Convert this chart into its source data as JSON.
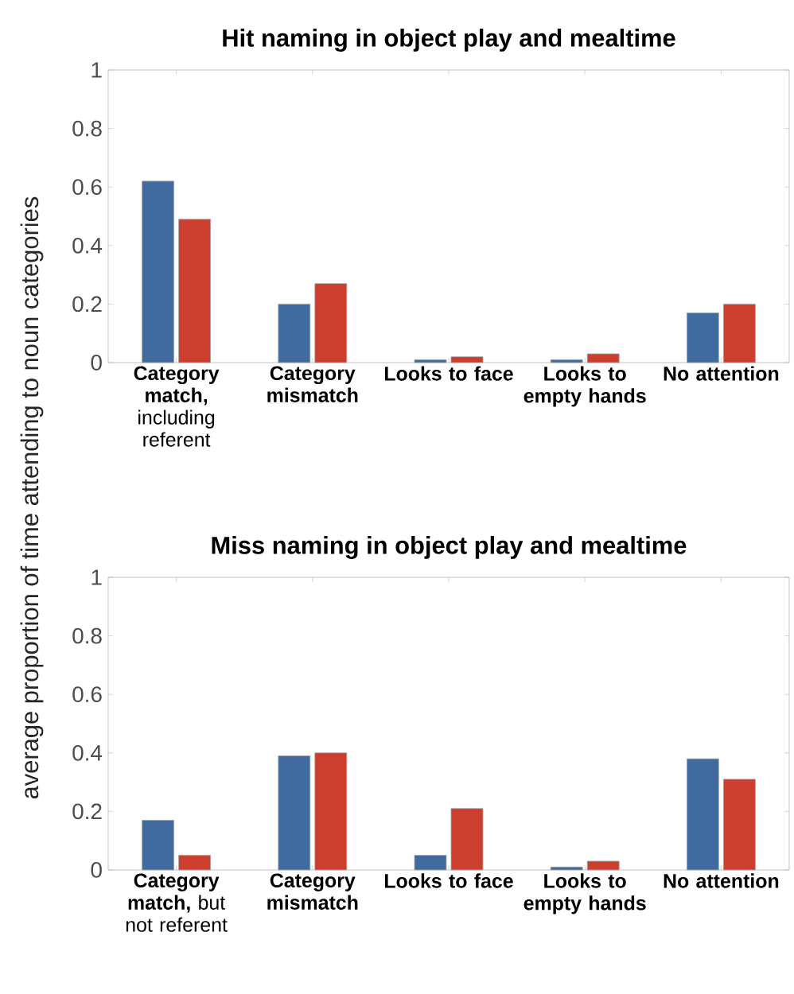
{
  "chart_data": [
    {
      "type": "bar",
      "title": "Hit naming in object play and mealtime",
      "categories": [
        "**Category match,** including referent",
        "Category mismatch",
        "Looks to face",
        "Looks to empty hands",
        "No attention"
      ],
      "series": [
        {
          "color": "#416a9f",
          "values": [
            0.62,
            0.2,
            0.01,
            0.01,
            0.17
          ]
        },
        {
          "color": "#cc3f2f",
          "values": [
            0.49,
            0.27,
            0.02,
            0.03,
            0.2
          ]
        }
      ],
      "ylim": [
        0,
        1
      ],
      "yticks": [
        0,
        0.2,
        0.4,
        0.6,
        0.8,
        1
      ],
      "grid": false,
      "legend": false
    },
    {
      "type": "bar",
      "title": "Miss naming in object play and mealtime",
      "ylabel": "average proportion of time attending to noun categories",
      "categories": [
        "**Category match,** but not referent",
        "Category mismatch",
        "Looks to face",
        "Looks to empty hands",
        "No attention"
      ],
      "series": [
        {
          "color": "#416a9f",
          "values": [
            0.17,
            0.39,
            0.05,
            0.01,
            0.38
          ]
        },
        {
          "color": "#cc3f2f",
          "values": [
            0.05,
            0.4,
            0.21,
            0.03,
            0.31
          ]
        }
      ],
      "ylim": [
        0,
        1
      ],
      "yticks": [
        0,
        0.2,
        0.4,
        0.6,
        0.8,
        1
      ],
      "grid": false,
      "legend": false
    }
  ]
}
